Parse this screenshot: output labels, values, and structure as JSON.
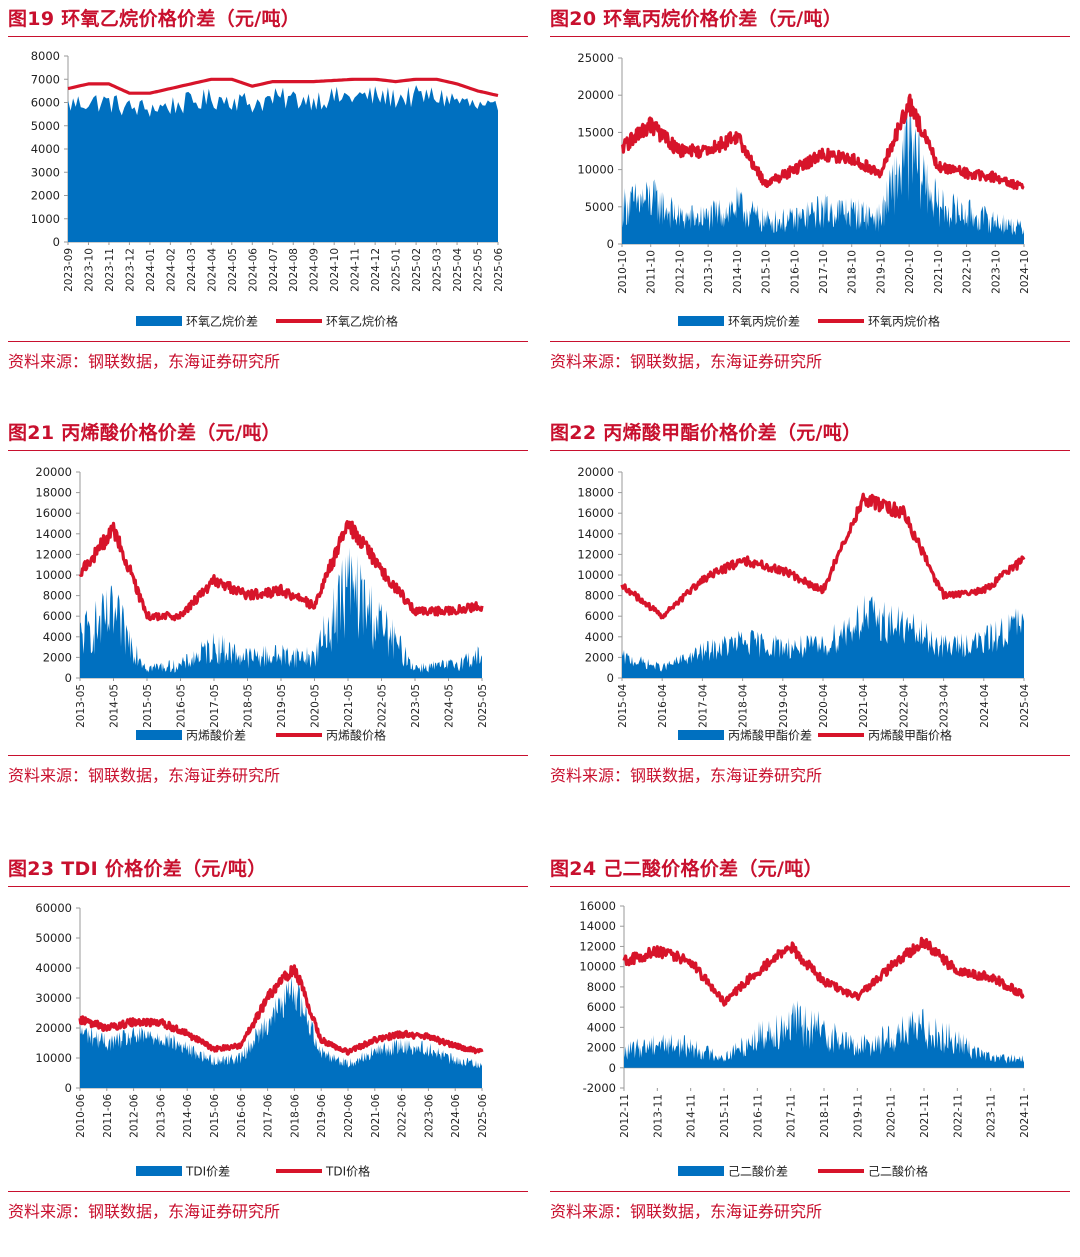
{
  "source": "资料来源：钢联数据，东海证券研究所",
  "colors": {
    "spread": "#0070c0",
    "price": "#d7142a",
    "title": "#c8102e",
    "axis": "#888888"
  },
  "charts": [
    {
      "id": "c19",
      "title": "图19  环氧乙烷价格价差（元/吨）",
      "legend_spread": "环氧乙烷价差",
      "legend_price": "环氧乙烷价格",
      "chart_data": {
        "type": "area+line",
        "ylim": [
          0,
          8000
        ],
        "yticks": [
          0,
          1000,
          2000,
          3000,
          4000,
          5000,
          6000,
          7000,
          8000
        ],
        "categories": [
          "2023-09",
          "2023-10",
          "2023-11",
          "2023-12",
          "2024-01",
          "2024-02",
          "2024-03",
          "2024-04",
          "2024-05",
          "2024-06",
          "2024-07",
          "2024-08",
          "2024-09",
          "2024-10",
          "2024-11",
          "2024-12",
          "2025-01",
          "2025-02",
          "2025-03",
          "2025-04",
          "2025-05",
          "2025-06"
        ],
        "series": [
          {
            "name": "环氧乙烷价差",
            "values": [
              5900,
              6050,
              6000,
              5750,
              5750,
              5850,
              6000,
              6150,
              6150,
              5950,
              6150,
              6150,
              6150,
              6200,
              6250,
              6250,
              6200,
              6250,
              6250,
              6100,
              5800,
              5650
            ]
          },
          {
            "name": "环氧乙烷价格",
            "values": [
              6600,
              6800,
              6800,
              6400,
              6400,
              6600,
              6800,
              7000,
              7000,
              6700,
              6900,
              6900,
              6900,
              6950,
              7000,
              7000,
              6900,
              7000,
              7000,
              6800,
              6500,
              6300
            ]
          }
        ]
      }
    },
    {
      "id": "c20",
      "title": "图20  环氧丙烷价格价差（元/吨）",
      "legend_spread": "环氧丙烷价差",
      "legend_price": "环氧丙烷价格",
      "chart_data": {
        "type": "area+line",
        "ylim": [
          0,
          25000
        ],
        "yticks": [
          0,
          5000,
          10000,
          15000,
          20000,
          25000
        ],
        "categories": [
          "2010-10",
          "2011-10",
          "2012-10",
          "2013-10",
          "2014-10",
          "2015-10",
          "2016-10",
          "2017-10",
          "2018-10",
          "2019-10",
          "2020-10",
          "2021-10",
          "2022-10",
          "2023-10",
          "2024-10"
        ],
        "series": [
          {
            "name": "环氧丙烷价差",
            "values": [
              5000,
              6000,
              3500,
              3500,
              5000,
              3000,
              3200,
              4500,
              4200,
              3500,
              13000,
              5000,
              4000,
              3000,
              2000
            ]
          },
          {
            "name": "环氧丙烷价格",
            "values": [
              13000,
              16000,
              12500,
              12500,
              14500,
              8000,
              10000,
              12000,
              11500,
              9500,
              19000,
              10500,
              9500,
              9000,
              7500
            ]
          }
        ]
      }
    },
    {
      "id": "c21",
      "title": "图21  丙烯酸价格价差（元/吨）",
      "legend_spread": "丙烯酸价差",
      "legend_price": "丙烯酸价格",
      "chart_data": {
        "type": "area+line",
        "ylim": [
          0,
          20000
        ],
        "yticks": [
          0,
          2000,
          4000,
          6000,
          8000,
          10000,
          12000,
          14000,
          16000,
          18000,
          20000
        ],
        "categories": [
          "2013-05",
          "2014-05",
          "2015-05",
          "2016-05",
          "2017-05",
          "2018-05",
          "2019-05",
          "2020-05",
          "2021-05",
          "2022-05",
          "2023-05",
          "2024-05",
          "2025-05"
        ],
        "series": [
          {
            "name": "丙烯酸价差",
            "values": [
              4000,
              6000,
              1000,
              1200,
              3000,
              2000,
              2200,
              2000,
              9000,
              5000,
              1000,
              1200,
              2200
            ]
          },
          {
            "name": "丙烯酸价格",
            "values": [
              10000,
              14500,
              6000,
              6000,
              9500,
              8000,
              8500,
              7000,
              15000,
              10500,
              6500,
              6500,
              7000
            ]
          }
        ]
      }
    },
    {
      "id": "c22",
      "title": "图22  丙烯酸甲酯价格价差（元/吨）",
      "legend_spread": "丙烯酸甲酯价差",
      "legend_price": "丙烯酸甲酯价格",
      "chart_data": {
        "type": "area+line",
        "ylim": [
          0,
          20000
        ],
        "yticks": [
          0,
          2000,
          4000,
          6000,
          8000,
          10000,
          12000,
          14000,
          16000,
          18000,
          20000
        ],
        "categories": [
          "2015-04",
          "2016-04",
          "2017-04",
          "2018-04",
          "2019-04",
          "2020-04",
          "2021-04",
          "2022-04",
          "2023-04",
          "2024-04",
          "2025-04"
        ],
        "series": [
          {
            "name": "丙烯酸甲酯价差",
            "values": [
              2000,
              1000,
              2500,
              3500,
              3000,
              3000,
              6000,
              5000,
              3000,
              3500,
              5500
            ]
          },
          {
            "name": "丙烯酸甲酯价格",
            "values": [
              9000,
              6000,
              9500,
              11500,
              10500,
              8500,
              17500,
              16000,
              8000,
              8500,
              11500
            ]
          }
        ]
      }
    },
    {
      "id": "c23",
      "title": "图23  TDI 价格价差（元/吨）",
      "legend_spread": "TDI价差",
      "legend_price": "TDI价格",
      "chart_data": {
        "type": "area+line",
        "ylim": [
          0,
          60000
        ],
        "yticks": [
          0,
          10000,
          20000,
          30000,
          40000,
          50000,
          60000
        ],
        "categories": [
          "2010-06",
          "2011-06",
          "2012-06",
          "2013-06",
          "2014-06",
          "2015-06",
          "2016-06",
          "2017-06",
          "2018-06",
          "2019-06",
          "2020-06",
          "2021-06",
          "2022-06",
          "2023-06",
          "2024-06",
          "2025-06"
        ],
        "series": [
          {
            "name": "TDI价差",
            "values": [
              19000,
              15000,
              17000,
              17000,
              13000,
              9000,
              10000,
              22000,
              33000,
              12000,
              8000,
              12000,
              14000,
              13000,
              9000,
              8000
            ]
          },
          {
            "name": "TDI价格",
            "values": [
              23000,
              20000,
              22000,
              22000,
              18000,
              13000,
              14000,
              30000,
              40000,
              16000,
              12000,
              16000,
              18000,
              17000,
              14000,
              12000
            ]
          }
        ]
      }
    },
    {
      "id": "c24",
      "title": "图24  己二酸价格价差（元/吨）",
      "legend_spread": "己二酸价差",
      "legend_price": "己二酸价格",
      "chart_data": {
        "type": "area+line",
        "ylim": [
          -2000,
          16000
        ],
        "yticks": [
          -2000,
          0,
          2000,
          4000,
          6000,
          8000,
          10000,
          12000,
          14000,
          16000
        ],
        "categories": [
          "2012-11",
          "2013-11",
          "2014-11",
          "2015-11",
          "2016-11",
          "2017-11",
          "2018-11",
          "2019-11",
          "2020-11",
          "2021-11",
          "2022-11",
          "2023-11",
          "2024-11"
        ],
        "series": [
          {
            "name": "己二酸价差",
            "values": [
              1500,
              2500,
              2000,
              1000,
              3000,
              4500,
              3500,
              2000,
              3000,
              4000,
              2500,
              1000,
              800
            ]
          },
          {
            "name": "己二酸价格",
            "values": [
              10500,
              11500,
              10500,
              6500,
              9500,
              12000,
              8500,
              7000,
              10000,
              12500,
              9500,
              9000,
              7200
            ]
          }
        ]
      }
    }
  ]
}
